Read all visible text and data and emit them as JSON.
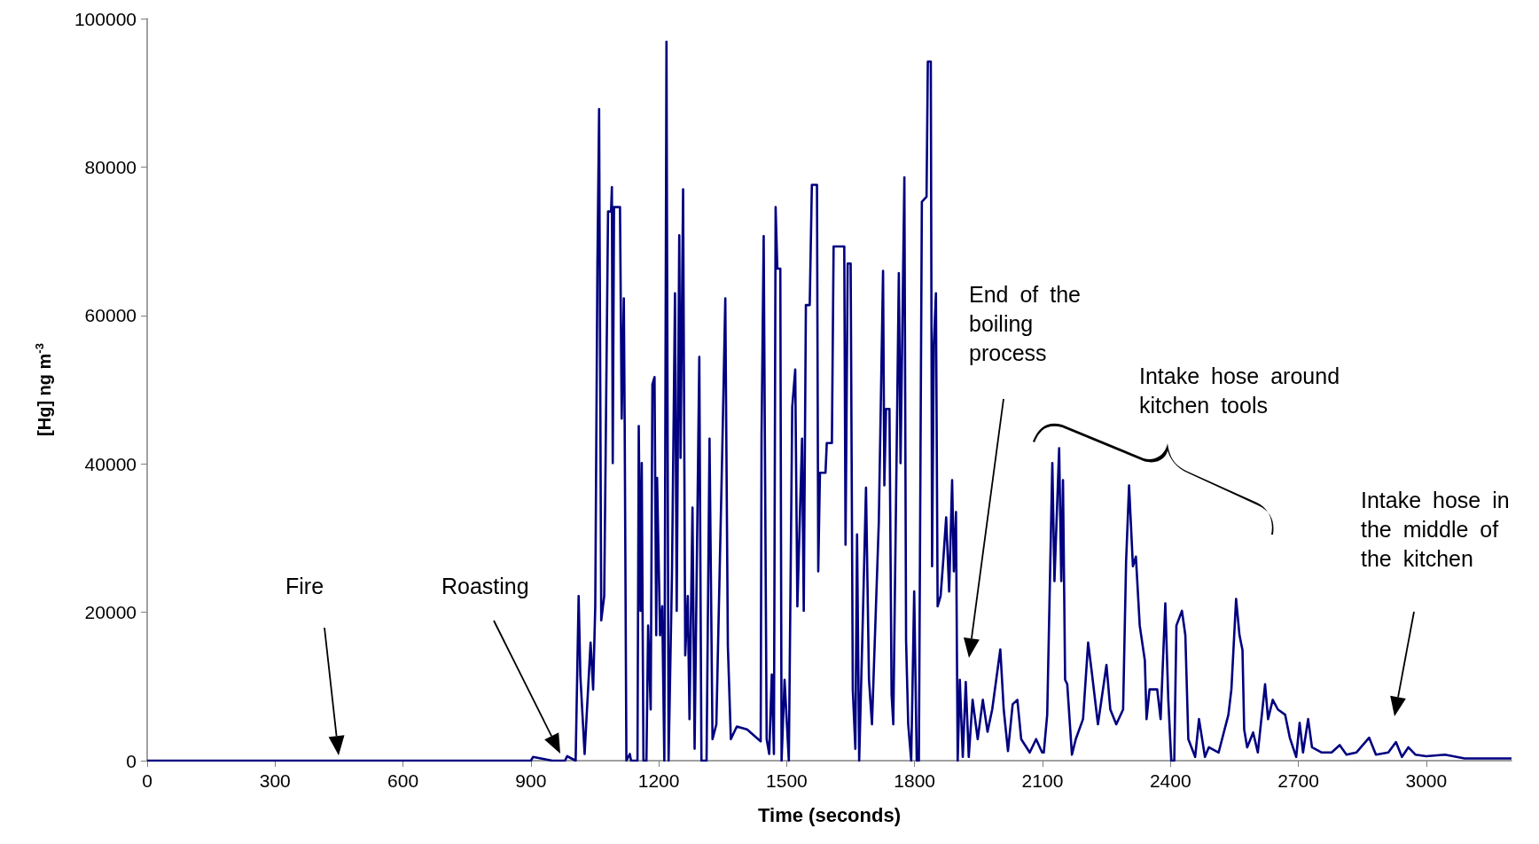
{
  "chart_data": {
    "type": "line",
    "xlabel": "Time (seconds)",
    "ylabel": "[Hg] ng m$^{-3}$",
    "xlim": [
      0,
      3200
    ],
    "xticks": [
      0,
      300,
      600,
      900,
      1200,
      1500,
      1800,
      2100,
      2400,
      2700,
      3000
    ],
    "ylim": [
      0,
      100000
    ],
    "yticks": [
      0,
      20000,
      40000,
      60000,
      80000,
      100000
    ],
    "grid": false,
    "marker": "none",
    "annotations": [
      "Fire",
      "Roasting",
      "End of the boiling process",
      "Intake hose around kitchen tools",
      "Intake hose in the middle of the kitchen"
    ],
    "series": [
      {
        "color": "#000080",
        "x": [
          0,
          900,
          905,
          950,
          980,
          985,
          1005,
          1012,
          1016,
          1026,
          1040,
          1046,
          1051,
          1056,
          1060,
          1065,
          1072,
          1081,
          1088,
          1090,
          1092,
          1095,
          1109,
          1113,
          1118,
          1120,
          1124,
          1132,
          1135,
          1150,
          1153,
          1157,
          1160,
          1164,
          1171,
          1175,
          1181,
          1185,
          1190,
          1194,
          1196,
          1203,
          1208,
          1213,
          1218,
          1223,
          1231,
          1238,
          1242,
          1248,
          1251,
          1257,
          1262,
          1268,
          1272,
          1279,
          1284,
          1295,
          1300,
          1312,
          1319,
          1326,
          1335,
          1349,
          1356,
          1362,
          1369,
          1383,
          1407,
          1439,
          1441,
          1446,
          1453,
          1459,
          1465,
          1470,
          1474,
          1478,
          1485,
          1488,
          1495,
          1505,
          1513,
          1520,
          1525,
          1536,
          1540,
          1545,
          1554,
          1559,
          1571,
          1574,
          1578,
          1591,
          1594,
          1606,
          1610,
          1635,
          1638,
          1643,
          1650,
          1655,
          1661,
          1665,
          1670,
          1679,
          1686,
          1693,
          1700,
          1709,
          1716,
          1726,
          1729,
          1733,
          1741,
          1746,
          1750,
          1763,
          1767,
          1776,
          1780,
          1785,
          1792,
          1799,
          1805,
          1810,
          1817,
          1828,
          1831,
          1838,
          1841,
          1845,
          1850,
          1854,
          1861,
          1867,
          1874,
          1881,
          1888,
          1892,
          1897,
          1901,
          1906,
          1913,
          1920,
          1927,
          1936,
          1948,
          1960,
          1971,
          1982,
          2001,
          2009,
          2019,
          2030,
          2041,
          2050,
          2070,
          2085,
          2099,
          2103,
          2111,
          2123,
          2128,
          2139,
          2144,
          2148,
          2153,
          2158,
          2169,
          2178,
          2195,
          2207,
          2215,
          2230,
          2250,
          2259,
          2273,
          2289,
          2296,
          2303,
          2312,
          2319,
          2328,
          2340,
          2344,
          2351,
          2369,
          2377,
          2388,
          2395,
          2402,
          2409,
          2414,
          2427,
          2435,
          2442,
          2458,
          2467,
          2481,
          2490,
          2513,
          2536,
          2543,
          2554,
          2562,
          2569,
          2573,
          2580,
          2594,
          2605,
          2622,
          2629,
          2640,
          2652,
          2669,
          2680,
          2695,
          2703,
          2711,
          2723,
          2732,
          2755,
          2778,
          2797,
          2813,
          2836,
          2866,
          2882,
          2911,
          2929,
          2943,
          2958,
          2975,
          3000,
          3044,
          3090,
          3159,
          3200
        ],
        "values": [
          0,
          0,
          500,
          0,
          0,
          600,
          0,
          22200,
          11500,
          900,
          15900,
          9600,
          20800,
          66700,
          87800,
          18900,
          22200,
          74000,
          74000,
          77300,
          40100,
          74600,
          74600,
          46100,
          62300,
          45400,
          0,
          900,
          0,
          0,
          45100,
          20200,
          40100,
          0,
          0,
          18200,
          6900,
          50700,
          51700,
          16900,
          38100,
          16900,
          20800,
          0,
          96900,
          0,
          25500,
          63000,
          20200,
          70800,
          40800,
          77000,
          14200,
          22200,
          5600,
          34100,
          1600,
          54400,
          0,
          0,
          43400,
          2900,
          4900,
          42100,
          62300,
          15500,
          2900,
          4600,
          4200,
          2600,
          43800,
          70700,
          2900,
          900,
          11600,
          900,
          74600,
          66300,
          66300,
          0,
          10900,
          0,
          47700,
          52700,
          20800,
          43400,
          20200,
          61400,
          61400,
          77600,
          77600,
          25500,
          38800,
          38800,
          42800,
          42800,
          69300,
          69300,
          29100,
          67000,
          67000,
          9600,
          1600,
          30500,
          0,
          20200,
          36800,
          10900,
          4900,
          20200,
          32100,
          66000,
          37100,
          47400,
          47400,
          8900,
          4900,
          65700,
          40100,
          78600,
          16200,
          4900,
          0,
          22800,
          0,
          0,
          75300,
          76000,
          94200,
          94200,
          26200,
          56000,
          63000,
          20800,
          22200,
          26800,
          32800,
          22800,
          37800,
          25500,
          33500,
          0,
          10900,
          500,
          10600,
          500,
          8200,
          2900,
          8200,
          3900,
          6900,
          15000,
          6900,
          1300,
          7600,
          8200,
          2900,
          1100,
          2900,
          1100,
          1100,
          6200,
          40100,
          24200,
          42100,
          24200,
          37800,
          10900,
          10300,
          800,
          2900,
          5600,
          15900,
          12200,
          4900,
          12900,
          6900,
          4900,
          6900,
          26800,
          37100,
          26200,
          27500,
          18200,
          13500,
          5600,
          9600,
          9600,
          5600,
          21200,
          8200,
          0,
          0,
          18200,
          20200,
          16900,
          2900,
          500,
          5600,
          500,
          1800,
          1100,
          6200,
          9600,
          21800,
          16900,
          14900,
          4200,
          1800,
          3800,
          1100,
          10300,
          5600,
          8200,
          6900,
          6200,
          3100,
          500,
          5100,
          1100,
          5600,
          1800,
          1100,
          1100,
          2100,
          800,
          1100,
          3100,
          800,
          1100,
          2500,
          500,
          1800,
          800,
          600,
          800,
          300,
          300,
          300
        ]
      }
    ]
  }
}
